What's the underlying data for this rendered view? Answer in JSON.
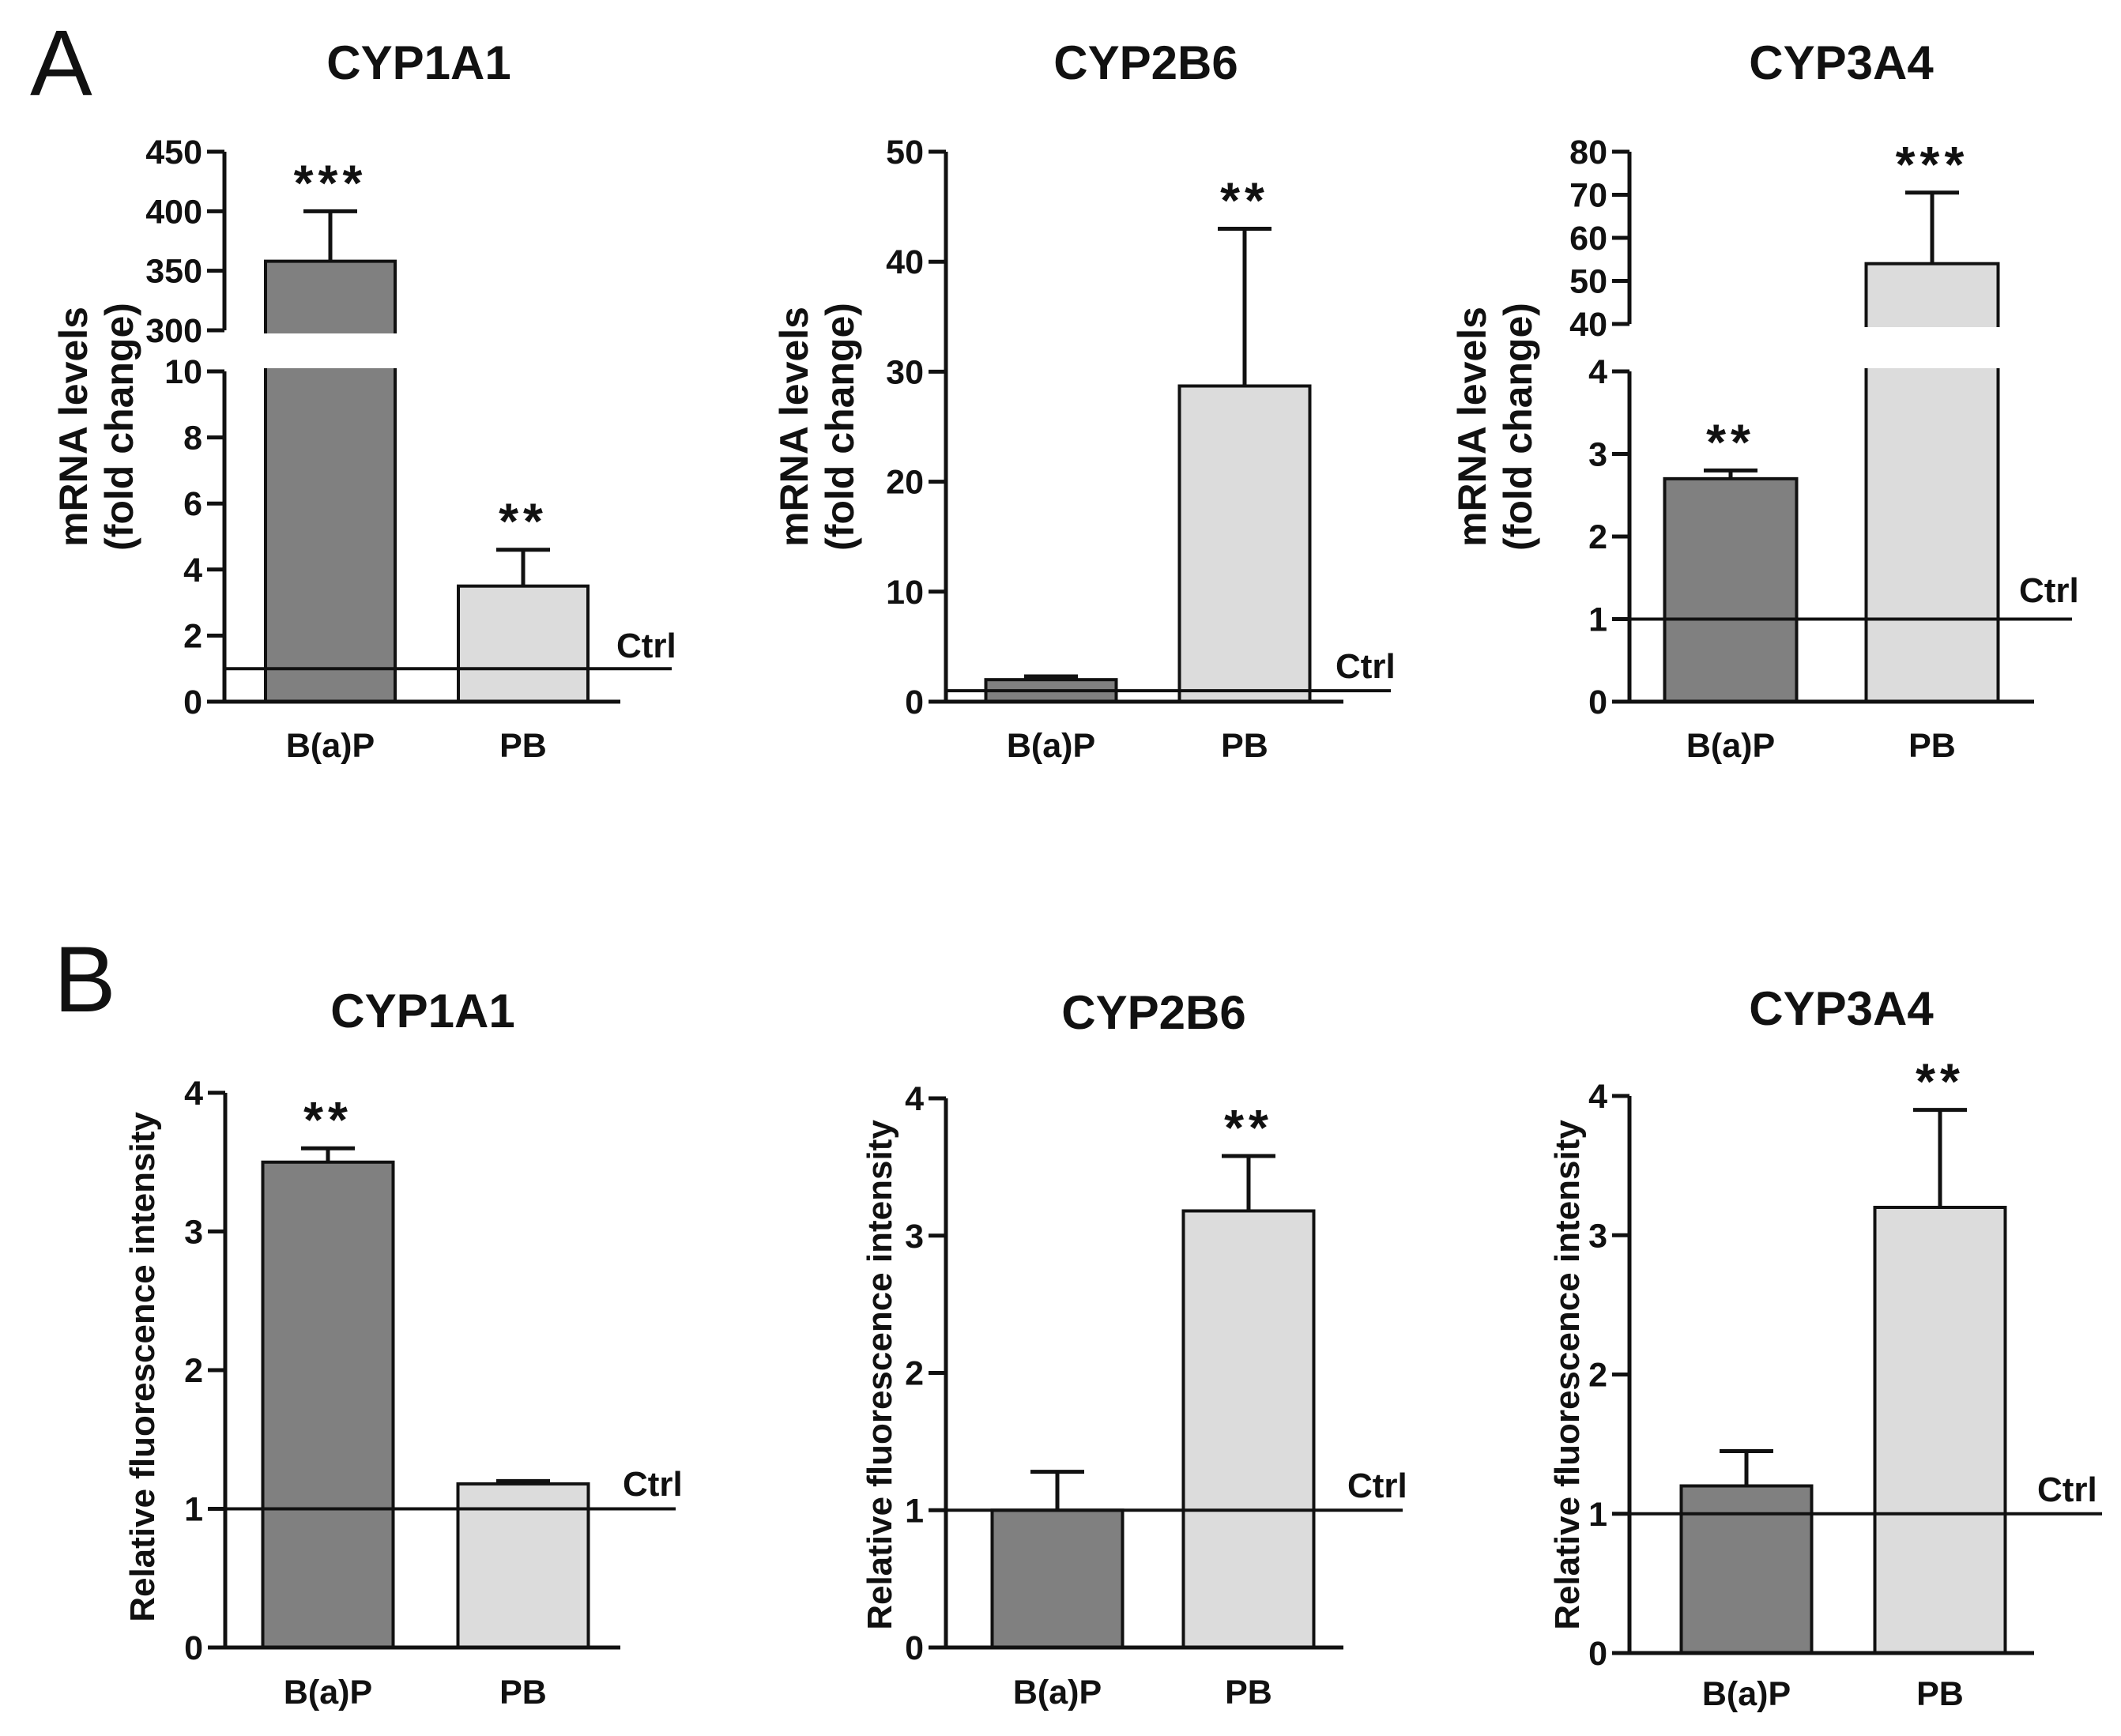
{
  "panels": [
    {
      "label": "A"
    },
    {
      "label": "B"
    }
  ],
  "colors": {
    "bap_bar": "#808080",
    "pb_bar": "#dcdcdc",
    "axis": "#111111",
    "text": "#111111"
  },
  "chart_data": [
    {
      "panel": "A",
      "type": "bar",
      "title": "CYP1A1",
      "ylabel_lines": [
        "mRNA levels",
        "(fold change)"
      ],
      "categories": [
        "B(a)P",
        "PB"
      ],
      "values": [
        358,
        3.5
      ],
      "error": [
        42,
        1.1
      ],
      "significance": [
        "***",
        "**"
      ],
      "reference_line": {
        "value": 1,
        "label": "Ctrl"
      },
      "y_axis_break": true,
      "lower_segment": {
        "ylim": [
          0,
          10
        ],
        "ticks": [
          0,
          2,
          4,
          6,
          8,
          10
        ]
      },
      "upper_segment": {
        "ylim": [
          300,
          450
        ],
        "ticks": [
          300,
          350,
          400,
          450
        ]
      }
    },
    {
      "panel": "A",
      "type": "bar",
      "title": "CYP2B6",
      "ylabel_lines": [
        "mRNA levels",
        "(fold change)"
      ],
      "categories": [
        "B(a)P",
        "PB"
      ],
      "values": [
        2,
        28.7
      ],
      "error": [
        0.3,
        14.3
      ],
      "significance": [
        "",
        "**"
      ],
      "reference_line": {
        "value": 1,
        "label": "Ctrl"
      },
      "ylim": [
        0,
        50
      ],
      "yticks": [
        0,
        10,
        20,
        30,
        40,
        50
      ]
    },
    {
      "panel": "A",
      "type": "bar",
      "title": "CYP3A4",
      "ylabel_lines": [
        "mRNA levels",
        "(fold change)"
      ],
      "categories": [
        "B(a)P",
        "PB"
      ],
      "values": [
        2.7,
        54
      ],
      "error": [
        0.1,
        16.5
      ],
      "significance": [
        "**",
        "***"
      ],
      "reference_line": {
        "value": 1,
        "label": "Ctrl"
      },
      "y_axis_break": true,
      "lower_segment": {
        "ylim": [
          0,
          4
        ],
        "ticks": [
          0,
          1,
          2,
          3,
          4
        ]
      },
      "upper_segment": {
        "ylim": [
          40,
          80
        ],
        "ticks": [
          40,
          50,
          60,
          70,
          80
        ]
      }
    },
    {
      "panel": "B",
      "type": "bar",
      "title": "CYP1A1",
      "ylabel_lines": [
        "Relative fluorescence intensity"
      ],
      "categories": [
        "B(a)P",
        "PB"
      ],
      "values": [
        3.5,
        1.18
      ],
      "error": [
        0.1,
        0.02
      ],
      "significance": [
        "**",
        ""
      ],
      "reference_line": {
        "value": 1,
        "label": "Ctrl"
      },
      "ylim": [
        0,
        4
      ],
      "yticks": [
        0,
        1,
        2,
        3,
        4
      ]
    },
    {
      "panel": "B",
      "type": "bar",
      "title": "CYP2B6",
      "ylabel_lines": [
        "Relative fluorescence intensity"
      ],
      "categories": [
        "B(a)P",
        "PB"
      ],
      "values": [
        1.0,
        3.18
      ],
      "error": [
        0.28,
        0.4
      ],
      "significance": [
        "",
        "**"
      ],
      "reference_line": {
        "value": 1,
        "label": "Ctrl"
      },
      "ylim": [
        0,
        4
      ],
      "yticks": [
        0,
        1,
        2,
        3,
        4
      ]
    },
    {
      "panel": "B",
      "type": "bar",
      "title": "CYP3A4",
      "ylabel_lines": [
        "Relative fluorescence intensity"
      ],
      "categories": [
        "B(a)P",
        "PB"
      ],
      "values": [
        1.2,
        3.2
      ],
      "error": [
        0.25,
        0.7
      ],
      "significance": [
        "",
        "**"
      ],
      "reference_line": {
        "value": 1,
        "label": "Ctrl"
      },
      "ylim": [
        0,
        4
      ],
      "yticks": [
        0,
        1,
        2,
        3,
        4
      ]
    }
  ]
}
